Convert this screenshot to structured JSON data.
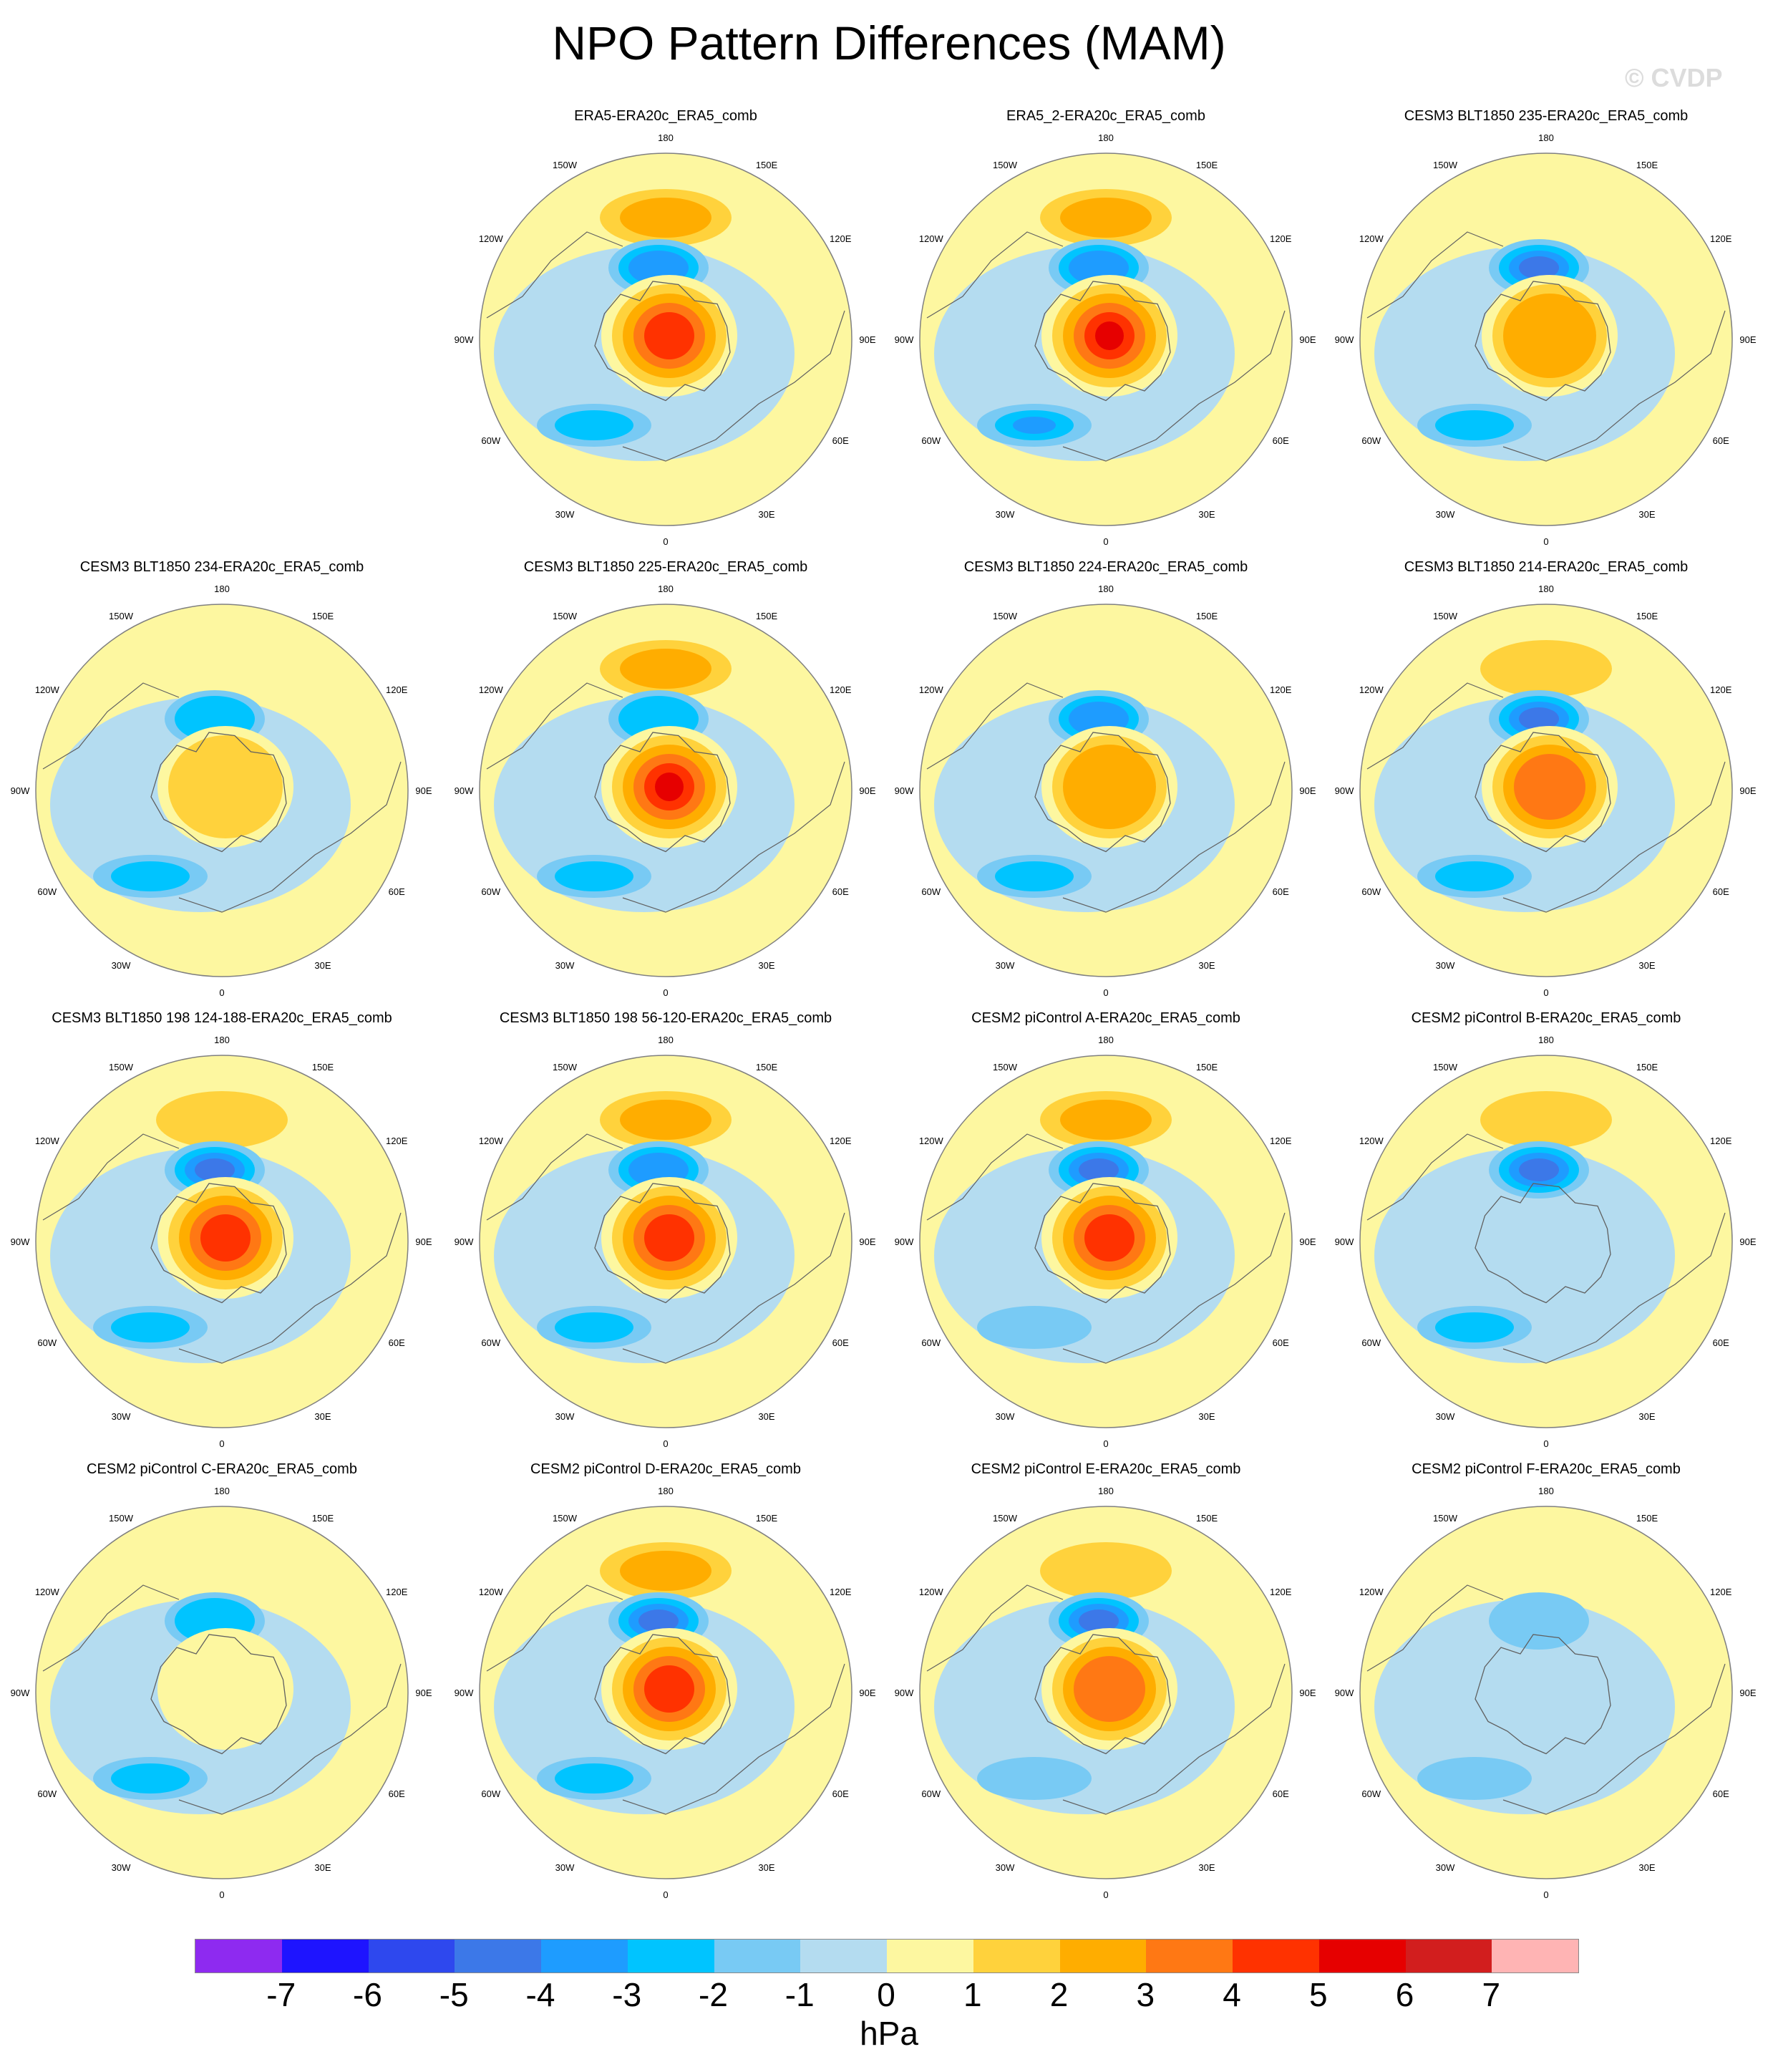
{
  "title": "NPO Pattern Differences (MAM)",
  "watermark": "© CVDP",
  "lon_labels": [
    "180",
    "150E",
    "120E",
    "90E",
    "60E",
    "30E",
    "0",
    "30W",
    "60W",
    "90W",
    "120W",
    "150W"
  ],
  "colors": {
    "ocean": "#b4dcf0",
    "land_outline": "#606060",
    "frame": "#808080"
  },
  "colorbar": {
    "colors": [
      "#8e2af0",
      "#1e14ff",
      "#2e48ee",
      "#3c78e8",
      "#1e9cff",
      "#00c4ff",
      "#78caf4",
      "#b4dcf0",
      "#fdf7a0",
      "#ffd23c",
      "#ffad00",
      "#ff7814",
      "#ff3200",
      "#e60000",
      "#d21e1e",
      "#ffb4b4"
    ],
    "ticks": [
      "-7",
      "-6",
      "-5",
      "-4",
      "-3",
      "-2",
      "-1",
      "0",
      "1",
      "2",
      "3",
      "4",
      "5",
      "6",
      "7"
    ],
    "units": "hPa"
  },
  "panels": [
    {
      "title": "ERA5-ERA20c_ERA5_comb",
      "pac_hi": 3,
      "pac_lo": -3,
      "arc_hi": 5,
      "atl_lo": -2
    },
    {
      "title": "ERA5_2-ERA20c_ERA5_comb",
      "pac_hi": 3,
      "pac_lo": -3,
      "arc_hi": 6,
      "atl_lo": -3
    },
    {
      "title": "CESM3 BLT1850 235-ERA20c_ERA5_comb",
      "pac_hi": 1,
      "pac_lo": -4,
      "arc_hi": 3,
      "atl_lo": -2
    },
    {
      "title": "CESM3 BLT1850 234-ERA20c_ERA5_comb",
      "pac_hi": 0,
      "pac_lo": -2,
      "arc_hi": 2,
      "atl_lo": -2
    },
    {
      "title": "CESM3 BLT1850 225-ERA20c_ERA5_comb",
      "pac_hi": 3,
      "pac_lo": -2,
      "arc_hi": 6,
      "atl_lo": -2
    },
    {
      "title": "CESM3 BLT1850 224-ERA20c_ERA5_comb",
      "pac_hi": 0,
      "pac_lo": -3,
      "arc_hi": 3,
      "atl_lo": -2
    },
    {
      "title": "CESM3 BLT1850 214-ERA20c_ERA5_comb",
      "pac_hi": 2,
      "pac_lo": -4,
      "arc_hi": 4,
      "atl_lo": -2
    },
    {
      "title": "CESM3 BLT1850 198 124-188-ERA20c_ERA5_comb",
      "pac_hi": 2,
      "pac_lo": -4,
      "arc_hi": 5,
      "atl_lo": -2
    },
    {
      "title": "CESM3 BLT1850 198 56-120-ERA20c_ERA5_comb",
      "pac_hi": 3,
      "pac_lo": -3,
      "arc_hi": 5,
      "atl_lo": -2
    },
    {
      "title": "CESM2 piControl A-ERA20c_ERA5_comb",
      "pac_hi": 3,
      "pac_lo": -4,
      "arc_hi": 5,
      "atl_lo": -1
    },
    {
      "title": "CESM2 piControl B-ERA20c_ERA5_comb",
      "pac_hi": 2,
      "pac_lo": -4,
      "arc_hi": 0,
      "atl_lo": -2
    },
    {
      "title": "CESM2 piControl C-ERA20c_ERA5_comb",
      "pac_hi": 0,
      "pac_lo": -2,
      "arc_hi": 1,
      "atl_lo": -2
    },
    {
      "title": "CESM2 piControl D-ERA20c_ERA5_comb",
      "pac_hi": 3,
      "pac_lo": -4,
      "arc_hi": 5,
      "atl_lo": -2
    },
    {
      "title": "CESM2 piControl E-ERA20c_ERA5_comb",
      "pac_hi": 2,
      "pac_lo": -4,
      "arc_hi": 4,
      "atl_lo": -1
    },
    {
      "title": "CESM2 piControl F-ERA20c_ERA5_comb",
      "pac_hi": 0,
      "pac_lo": -1,
      "arc_hi": 0,
      "atl_lo": -1
    }
  ]
}
